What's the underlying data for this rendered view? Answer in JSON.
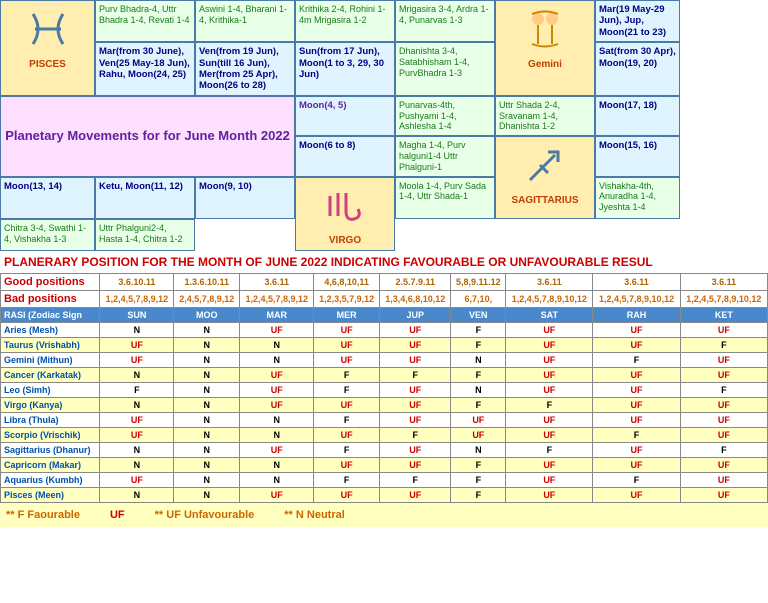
{
  "grid": {
    "rows": [
      [
        {
          "cls": "sign-cell",
          "sign": "PISCES",
          "svg": "pisces",
          "rows": 3
        },
        {
          "cls": "nak",
          "txt": "Purv Bhadra-4, Uttr Bhadra 1-4, Revati 1-4"
        },
        {
          "cls": "nak",
          "txt": "Aswini 1-4, Bharani 1-4, Krithika-1"
        },
        {
          "cls": "nak",
          "txt": "Krithika 2-4, Rohini 1-4m Mrigasira 1-2"
        },
        {
          "cls": "nak",
          "txt": "Mrigasira 3-4, Ardra 1-4, Punarvas 1-3"
        },
        {
          "cls": "sign-cell",
          "sign": "Gemini",
          "svg": "gemini",
          "rows": 3
        }
      ],
      [
        {
          "cls": "mov",
          "txt": "Mar(19 May-29 Jun), Jup, Moon(21 to 23)"
        },
        {
          "cls": "mov",
          "txt": "Mar(from 30 June), Ven(25 May-18 Jun), Rahu, Moon(24, 25)"
        },
        {
          "cls": "mov",
          "txt": "Ven(from 19 Jun), Sun(till 16 Jun), Mer(from 25 Apr), Moon(26 to 28)"
        },
        {
          "cls": "mov",
          "txt": "Sun(from 17 Jun), Moon(1 to 3, 29, 30 Jun)"
        }
      ],
      [
        {
          "cls": "nak",
          "txt": "Dhanishta 3-4, Satabhisham 1-4, PurvBhadra 1-3"
        },
        {
          "cls": "mov",
          "txt": "Sat(from 30 Apr), Moon(19, 20)"
        },
        {
          "cls": "title-cell",
          "txt": "Planetary Movements for for June Month 2022",
          "cols": 3,
          "rows": 2
        },
        {
          "cls": "mov moon45",
          "txt": "Moon(4, 5)"
        },
        {
          "cls": "nak",
          "txt": "Punarvas-4th, Pushyami 1-4, Ashlesha 1-4"
        }
      ],
      [
        {
          "cls": "nak",
          "txt": "Uttr Shada 2-4, Sravanam 1-4, Dhanishta 1-2"
        },
        {
          "cls": "mov",
          "txt": "Moon(17, 18)"
        },
        {
          "cls": "mov",
          "txt": "Moon(6 to 8)"
        },
        {
          "cls": "nak",
          "txt": "Magha 1-4, Purv halguni1-4 Uttr Phalguni-1"
        }
      ],
      [
        {
          "cls": "sign-cell",
          "sign": "SAGITTARIUS",
          "svg": "sagittarius",
          "rows": 3
        },
        {
          "cls": "mov",
          "txt": "Moon(15, 16)"
        },
        {
          "cls": "mov",
          "txt": "Moon(13, 14)"
        },
        {
          "cls": "mov",
          "txt": "Ketu, Moon(11, 12)"
        },
        {
          "cls": "mov",
          "txt": "Moon(9, 10)"
        },
        {
          "cls": "sign-cell",
          "sign": "VIRGO",
          "svg": "virgo",
          "rows": 3
        }
      ],
      [
        {
          "cls": "nak",
          "txt": "Moola 1-4,   Purv Sada 1-4, Uttr Shada-1"
        },
        {
          "cls": "nak",
          "txt": "Vishakha-4th, Anuradha 1-4, Jyeshta 1-4"
        },
        {
          "cls": "nak",
          "txt": "Chitra 3-4,  Swathi 1-4, Vishakha 1-3"
        },
        {
          "cls": "nak",
          "txt": "Uttr Phalguni2-4, Hasta 1-4, Chitra 1-2"
        }
      ]
    ]
  },
  "redTitle": "PLANERARY POSITION FOR THE MONTH OF JUNE 2022 INDICATING FAVOURABLE OR UNFAVOURABLE RESUL",
  "posTable": {
    "good": {
      "label": "Good positions",
      "vals": [
        "3.6.10.11",
        "1.3.6.10.11",
        "3.6.11",
        "4,6,8,10,11",
        "2.5.7.9.11",
        "5,8,9.11.12",
        "3.6.11",
        "3.6.11",
        "3.6.11"
      ]
    },
    "bad": {
      "label": "Bad positions",
      "vals": [
        "1,2,4,5,7,8,9,12",
        "2,4,5,7,8,9,12",
        "1,2,4,5,7,8,9,12",
        "1,2,3,5,7,9,12",
        "1,3,4,6,8,10,12",
        "6,7,10,",
        "1,2,4,5,7,8,9,10,12",
        "1,2,4,5,7,8,9,10,12",
        "1,2,4,5,7,8,9,10,12"
      ]
    },
    "headers": [
      "RASI (Zodiac Sign",
      "SUN",
      "MOO",
      "MAR",
      "MER",
      "JUP",
      "VEN",
      "SAT",
      "RAH",
      "KET"
    ],
    "rows": [
      {
        "rasi": "Aries (Mesh)",
        "v": [
          "N",
          "N",
          "UF",
          "UF",
          "UF",
          "F",
          "UF",
          "UF",
          "UF"
        ]
      },
      {
        "rasi": "Taurus (Vrishabh)",
        "v": [
          "UF",
          "N",
          "N",
          "UF",
          "UF",
          "F",
          "UF",
          "UF",
          "F"
        ]
      },
      {
        "rasi": "Gemini (Mithun)",
        "v": [
          "UF",
          "N",
          "N",
          "UF",
          "UF",
          "N",
          "UF",
          "F",
          "UF"
        ]
      },
      {
        "rasi": "Cancer (Karkatak)",
        "v": [
          "N",
          "N",
          "UF",
          "F",
          "F",
          "F",
          "UF",
          "UF",
          "UF"
        ]
      },
      {
        "rasi": "Leo (Simh)",
        "v": [
          "F",
          "N",
          "UF",
          "F",
          "UF",
          "N",
          "UF",
          "UF",
          "F"
        ]
      },
      {
        "rasi": "Virgo (Kanya)",
        "v": [
          "N",
          "N",
          "UF",
          "UF",
          "UF",
          "F",
          "F",
          "UF",
          "UF"
        ]
      },
      {
        "rasi": "Libra (Thula)",
        "v": [
          "UF",
          "N",
          "N",
          "F",
          "UF",
          "UF",
          "UF",
          "UF",
          "UF"
        ]
      },
      {
        "rasi": "Scorpio (Vrischik)",
        "v": [
          "UF",
          "N",
          "N",
          "UF",
          "F",
          "UF",
          "UF",
          "F",
          "UF"
        ]
      },
      {
        "rasi": "Sagittarius (Dhanur)",
        "v": [
          "N",
          "N",
          "UF",
          "F",
          "UF",
          "N",
          "F",
          "UF",
          "F"
        ]
      },
      {
        "rasi": "Capricorn (Makar)",
        "v": [
          "N",
          "N",
          "N",
          "UF",
          "UF",
          "F",
          "UF",
          "UF",
          "UF"
        ]
      },
      {
        "rasi": "Aquarius (Kumbh)",
        "v": [
          "UF",
          "N",
          "N",
          "F",
          "F",
          "F",
          "UF",
          "F",
          "UF"
        ]
      },
      {
        "rasi": "Pisces (Meen)",
        "v": [
          "N",
          "N",
          "UF",
          "UF",
          "UF",
          "F",
          "UF",
          "UF",
          "UF"
        ]
      }
    ]
  },
  "legend": {
    "f": "** F    Faourable",
    "ufMark": "UF",
    "uf": "** UF    Unfavourable",
    "n": "** N        Neutral"
  }
}
